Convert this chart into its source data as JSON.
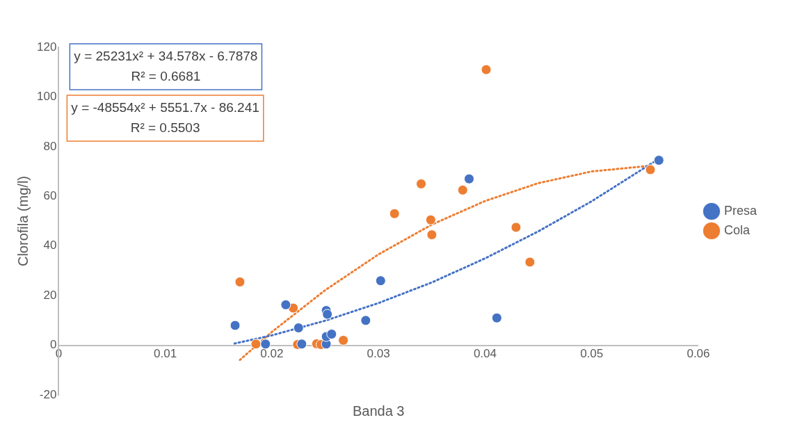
{
  "chart_data": {
    "type": "scatter",
    "xlabel": "Banda 3",
    "ylabel": "Clorofila (mg/l)",
    "xlim": [
      0,
      0.06
    ],
    "xticks": [
      0,
      0.01,
      0.02,
      0.03,
      0.04,
      0.05,
      0.06
    ],
    "ylim": [
      -20,
      120
    ],
    "yticks": [
      -20,
      0,
      20,
      40,
      60,
      80,
      100,
      120
    ],
    "grid": false,
    "legend": "right",
    "marker": "circle",
    "series": [
      {
        "name": "Presa",
        "color": "#4472c4",
        "x": [
          0.01655,
          0.0194,
          0.0213,
          0.0225,
          0.0228,
          0.0251,
          0.0252,
          0.0251,
          0.0251,
          0.0256,
          0.0288,
          0.0302,
          0.0385,
          0.0411,
          0.0563
        ],
        "values": [
          8,
          0.5,
          16.3,
          7,
          0.5,
          14,
          12.5,
          0.5,
          3.5,
          4.5,
          10,
          26,
          67,
          11,
          74.5
        ]
      },
      {
        "name": "Cola",
        "color": "#ed7d31",
        "x": [
          0.017,
          0.0185,
          0.022,
          0.0224,
          0.0242,
          0.0246,
          0.0267,
          0.0315,
          0.034,
          0.0349,
          0.035,
          0.0379,
          0.0401,
          0.0429,
          0.0442,
          0.0555
        ],
        "values": [
          25.5,
          0.5,
          15,
          0.3,
          0.6,
          0.3,
          2,
          53,
          65,
          50.5,
          44.5,
          62.5,
          111,
          47.5,
          33.5,
          70.7
        ]
      },
      {
        "type": "line",
        "line_style": "dotted",
        "marker": "none",
        "color": "#4472c4",
        "x": [
          0.0165,
          0.02,
          0.025,
          0.03,
          0.035,
          0.04,
          0.045,
          0.05,
          0.0563
        ],
        "values": [
          0.7,
          4,
          9.9,
          17,
          25.3,
          35,
          45.9,
          58,
          75.1
        ]
      },
      {
        "type": "line",
        "line_style": "dotted",
        "marker": "none",
        "color": "#ed7d31",
        "x": [
          0.017,
          0.02,
          0.025,
          0.03,
          0.035,
          0.04,
          0.045,
          0.05,
          0.0555
        ],
        "values": [
          -5.9,
          5.4,
          22.2,
          36.6,
          48.6,
          58.1,
          65.3,
          70,
          72.3
        ]
      }
    ],
    "annotations": [
      "y = 25231x² + 34.578x - 6.7878",
      "R² = 0.6681",
      "y = -48554x² + 5551.7x - 86.241",
      "R² = 0.5503"
    ]
  }
}
